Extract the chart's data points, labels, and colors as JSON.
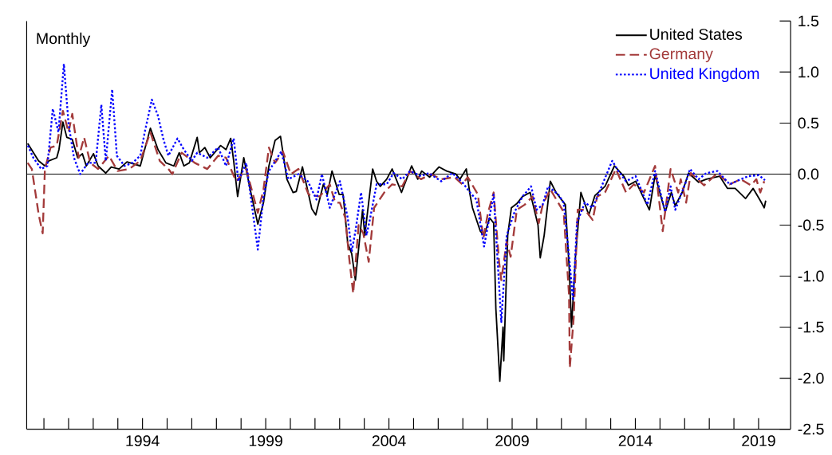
{
  "chart_data": {
    "type": "line",
    "annotations": [
      "Monthly"
    ],
    "xlim": [
      1989.3,
      2020.3
    ],
    "xticks": [
      {
        "value": 1990,
        "label": null
      },
      {
        "value": 1991,
        "label": null
      },
      {
        "value": 1992,
        "label": null
      },
      {
        "value": 1993,
        "label": null
      },
      1994,
      {
        "value": 1995,
        "label": null
      },
      {
        "value": 1996,
        "label": null
      },
      {
        "value": 1997,
        "label": null
      },
      {
        "value": 1998,
        "label": null
      },
      1999,
      {
        "value": 2000,
        "label": null
      },
      {
        "value": 2001,
        "label": null
      },
      {
        "value": 2002,
        "label": null
      },
      {
        "value": 2003,
        "label": null
      },
      2004,
      {
        "value": 2005,
        "label": null
      },
      {
        "value": 2006,
        "label": null
      },
      {
        "value": 2007,
        "label": null
      },
      {
        "value": 2008,
        "label": null
      },
      2009,
      {
        "value": 2010,
        "label": null
      },
      {
        "value": 2011,
        "label": null
      },
      {
        "value": 2012,
        "label": null
      },
      {
        "value": 2013,
        "label": null
      },
      2014,
      {
        "value": 2015,
        "label": null
      },
      {
        "value": 2016,
        "label": null
      },
      {
        "value": 2017,
        "label": null
      },
      {
        "value": 2018,
        "label": null
      },
      2019
    ],
    "ylim": [
      -2.5,
      1.5
    ],
    "yticks": [
      {
        "value": 1.5,
        "label": "1.5"
      },
      {
        "value": 1.0,
        "label": "1.0"
      },
      {
        "value": 0.5,
        "label": "0.5"
      },
      {
        "value": 0.0,
        "label": "0.0"
      },
      {
        "value": -0.5,
        "label": "-0.5"
      },
      {
        "value": -1.0,
        "label": "-1.0"
      },
      {
        "value": -1.5,
        "label": "-1.5"
      },
      {
        "value": -2.0,
        "label": "-2.0"
      },
      {
        "value": -2.5,
        "label": "-2.5"
      }
    ],
    "ref_lines": [
      {
        "axis": "y",
        "value": 0,
        "color": "#000000"
      }
    ],
    "legend": "top right",
    "marker": "none",
    "series": [
      {
        "name": "United States",
        "color": "#000000",
        "line_style": "solid",
        "x": [
          1989.34,
          1989.78,
          1990.04,
          1990.2,
          1990.52,
          1990.61,
          1990.77,
          1990.93,
          1991.15,
          1991.37,
          1991.56,
          1991.72,
          1992.01,
          1992.2,
          1992.51,
          1992.73,
          1993.05,
          1993.37,
          1993.91,
          1994.32,
          1994.63,
          1994.95,
          1995.27,
          1995.49,
          1995.68,
          1995.9,
          1996.22,
          1996.31,
          1996.53,
          1996.75,
          1997.17,
          1997.39,
          1997.58,
          1997.7,
          1997.86,
          1998.11,
          1998.37,
          1998.68,
          1998.91,
          1999.13,
          1999.38,
          1999.6,
          1999.86,
          2000.11,
          2000.24,
          2000.49,
          2000.87,
          2001.03,
          2001.34,
          2001.5,
          2001.69,
          2001.98,
          2002.14,
          2002.33,
          2002.49,
          2002.64,
          2002.93,
          2003.02,
          2003.34,
          2003.5,
          2003.65,
          2003.91,
          2004.13,
          2004.51,
          2004.92,
          2005.17,
          2005.33,
          2005.65,
          2006.03,
          2006.34,
          2006.72,
          2006.88,
          2007.14,
          2007.29,
          2007.39,
          2007.71,
          2007.86,
          2008.09,
          2008.25,
          2008.34,
          2008.5,
          2008.63,
          2008.66,
          2008.82,
          2008.97,
          2009.19,
          2009.42,
          2009.73,
          2010.05,
          2010.14,
          2010.3,
          2010.55,
          2010.78,
          2011.16,
          2011.32,
          2011.41,
          2011.57,
          2011.79,
          2012.11,
          2012.36,
          2012.77,
          2013.15,
          2013.53,
          2013.72,
          2014.01,
          2014.57,
          2014.8,
          2015.21,
          2015.46,
          2015.62,
          2015.9,
          2016.16,
          2016.57,
          2016.88,
          2017.42,
          2017.74,
          2018.05,
          2018.47,
          2018.78,
          2019.07,
          2019.23,
          2019.29
        ],
        "values": [
          0.3,
          0.13,
          0.08,
          0.13,
          0.16,
          0.24,
          0.51,
          0.36,
          0.34,
          0.16,
          0.2,
          0.08,
          0.2,
          0.08,
          0.01,
          0.07,
          0.05,
          0.12,
          0.08,
          0.45,
          0.24,
          0.11,
          0.08,
          0.21,
          0.08,
          0.11,
          0.36,
          0.21,
          0.26,
          0.16,
          0.28,
          0.24,
          0.35,
          0.13,
          -0.22,
          0.16,
          -0.15,
          -0.49,
          -0.28,
          0.08,
          0.33,
          0.37,
          -0.05,
          -0.18,
          -0.17,
          0.07,
          -0.34,
          -0.4,
          -0.1,
          -0.2,
          0.03,
          -0.2,
          -0.2,
          -0.68,
          -0.78,
          -1.04,
          -0.35,
          -0.6,
          0.05,
          -0.07,
          -0.12,
          -0.05,
          0.05,
          -0.18,
          0.08,
          -0.05,
          0.03,
          -0.03,
          0.07,
          0.03,
          0.0,
          -0.05,
          0.05,
          -0.2,
          -0.33,
          -0.56,
          -0.6,
          -0.43,
          -0.48,
          -1.32,
          -2.03,
          -1.5,
          -1.83,
          -0.6,
          -0.33,
          -0.29,
          -0.22,
          -0.18,
          -0.5,
          -0.82,
          -0.6,
          -0.07,
          -0.18,
          -0.3,
          -0.94,
          -1.5,
          -0.81,
          -0.18,
          -0.4,
          -0.21,
          -0.12,
          0.08,
          -0.02,
          -0.11,
          -0.07,
          -0.35,
          -0.01,
          -0.37,
          -0.18,
          -0.31,
          -0.18,
          0.01,
          -0.08,
          -0.05,
          -0.02,
          -0.14,
          -0.14,
          -0.24,
          -0.14,
          -0.26,
          -0.33,
          -0.26
        ]
      },
      {
        "name": "Germany",
        "color": "#a33a3a",
        "line_style": "dashed",
        "x": [
          1989.34,
          1989.51,
          1989.79,
          1989.95,
          1990.04,
          1990.27,
          1990.52,
          1990.77,
          1991.0,
          1991.15,
          1991.41,
          1991.63,
          1991.88,
          1992.2,
          1992.64,
          1992.99,
          1993.46,
          1993.91,
          1994.32,
          1994.7,
          1995.05,
          1995.21,
          1995.59,
          1996.12,
          1996.63,
          1997.07,
          1997.39,
          1997.8,
          1998.21,
          1998.68,
          1998.91,
          1999.13,
          1999.38,
          1999.7,
          2000.02,
          2000.33,
          2000.74,
          2001.19,
          2001.6,
          2001.82,
          2002.01,
          2002.23,
          2002.39,
          2002.55,
          2002.77,
          2002.96,
          2003.18,
          2003.4,
          2003.81,
          2004.13,
          2004.54,
          2004.86,
          2005.3,
          2005.71,
          2006.12,
          2006.66,
          2006.98,
          2007.2,
          2007.61,
          2007.83,
          2008.02,
          2008.25,
          2008.47,
          2008.56,
          2008.78,
          2008.94,
          2009.19,
          2009.51,
          2009.83,
          2010.08,
          2010.24,
          2010.55,
          2011.09,
          2011.31,
          2011.34,
          2011.5,
          2011.66,
          2011.95,
          2012.27,
          2012.45,
          2012.77,
          2013.21,
          2013.62,
          2013.94,
          2014.35,
          2014.8,
          2015.11,
          2015.43,
          2015.74,
          2015.84,
          2016.06,
          2016.25,
          2016.79,
          2017.33,
          2017.83,
          2018.28,
          2018.69,
          2018.91,
          2019.07,
          2019.23
        ],
        "values": [
          0.11,
          0.05,
          -0.4,
          -0.58,
          0.05,
          0.26,
          0.28,
          0.62,
          0.41,
          0.59,
          0.16,
          0.36,
          0.11,
          0.05,
          0.18,
          0.03,
          0.05,
          0.13,
          0.41,
          0.13,
          0.05,
          0.0,
          0.21,
          0.11,
          0.05,
          0.18,
          0.16,
          -0.07,
          0.05,
          -0.38,
          -0.15,
          0.26,
          0.11,
          0.22,
          0.0,
          0.05,
          -0.2,
          -0.22,
          -0.1,
          -0.28,
          -0.28,
          -0.43,
          -0.83,
          -1.17,
          -0.5,
          -0.58,
          -0.86,
          -0.33,
          -0.18,
          -0.1,
          -0.12,
          0.03,
          -0.05,
          0.0,
          -0.05,
          -0.03,
          -0.1,
          -0.03,
          -0.2,
          -0.63,
          -0.38,
          -0.18,
          -0.86,
          -1.04,
          -0.66,
          -0.81,
          -0.35,
          -0.3,
          -0.22,
          -0.48,
          -0.3,
          -0.15,
          -0.37,
          -1.19,
          -1.9,
          -1.4,
          -0.35,
          -0.35,
          -0.45,
          -0.22,
          -0.18,
          0.05,
          -0.18,
          -0.1,
          -0.18,
          0.08,
          -0.56,
          0.05,
          -0.18,
          -0.05,
          -0.28,
          0.01,
          -0.11,
          0.01,
          -0.1,
          -0.05,
          -0.11,
          -0.05,
          -0.18,
          -0.07
        ]
      },
      {
        "name": "United Kingdom",
        "color": "#0000ff",
        "line_style": "dotted",
        "x": [
          1989.35,
          1989.57,
          1989.89,
          1990.14,
          1990.36,
          1990.59,
          1990.81,
          1991.0,
          1991.22,
          1991.47,
          1991.79,
          1992.1,
          1992.33,
          1992.51,
          1992.77,
          1992.96,
          1993.27,
          1993.59,
          1993.91,
          1994.09,
          1994.38,
          1994.63,
          1994.85,
          1995.05,
          1995.42,
          1995.68,
          1996.0,
          1996.22,
          1996.63,
          1997.07,
          1997.39,
          1997.7,
          1997.89,
          1998.21,
          1998.68,
          1998.91,
          1999.13,
          1999.63,
          1999.92,
          2000.33,
          2000.71,
          2001.06,
          2001.28,
          2001.6,
          2002.01,
          2002.33,
          2002.49,
          2002.64,
          2002.87,
          2003.09,
          2003.24,
          2003.5,
          2003.91,
          2004.19,
          2004.54,
          2004.86,
          2005.3,
          2005.62,
          2006.12,
          2006.57,
          2006.98,
          2007.29,
          2007.55,
          2007.86,
          2008.25,
          2008.56,
          2008.78,
          2009.1,
          2009.42,
          2009.77,
          2009.99,
          2010.24,
          2010.46,
          2010.87,
          2011.09,
          2011.31,
          2011.47,
          2011.63,
          2011.95,
          2012.27,
          2012.58,
          2013.06,
          2013.31,
          2013.62,
          2014.01,
          2014.49,
          2014.8,
          2015.21,
          2015.43,
          2015.62,
          2016.06,
          2016.22,
          2016.57,
          2016.88,
          2017.33,
          2017.83,
          2018.28,
          2018.59,
          2019.01,
          2019.26
        ],
        "values": [
          0.28,
          0.16,
          0.05,
          0.08,
          0.64,
          0.41,
          1.08,
          0.49,
          0.16,
          0.0,
          0.11,
          0.11,
          0.68,
          0.13,
          0.83,
          0.18,
          0.08,
          0.11,
          0.18,
          0.41,
          0.73,
          0.57,
          0.34,
          0.18,
          0.35,
          0.24,
          0.13,
          0.21,
          0.16,
          0.26,
          0.08,
          0.35,
          -0.07,
          0.11,
          -0.74,
          -0.22,
          0.03,
          0.22,
          -0.05,
          0.0,
          -0.07,
          -0.25,
          0.0,
          -0.33,
          -0.07,
          -0.43,
          -0.76,
          -0.56,
          -0.18,
          -0.6,
          -0.43,
          -0.1,
          -0.1,
          0.01,
          -0.05,
          0.03,
          -0.02,
          0.01,
          -0.07,
          0.01,
          -0.08,
          -0.18,
          -0.25,
          -0.71,
          -0.2,
          -1.45,
          -0.6,
          -0.37,
          -0.22,
          -0.12,
          -0.35,
          -0.3,
          -0.12,
          -0.2,
          -0.28,
          -0.81,
          -1.24,
          -0.48,
          -0.28,
          -0.33,
          -0.15,
          0.13,
          0.03,
          -0.07,
          -0.02,
          -0.3,
          0.03,
          -0.37,
          -0.12,
          -0.35,
          -0.07,
          0.05,
          -0.05,
          0.01,
          0.03,
          -0.1,
          -0.05,
          -0.02,
          -0.01,
          -0.06
        ]
      }
    ]
  }
}
